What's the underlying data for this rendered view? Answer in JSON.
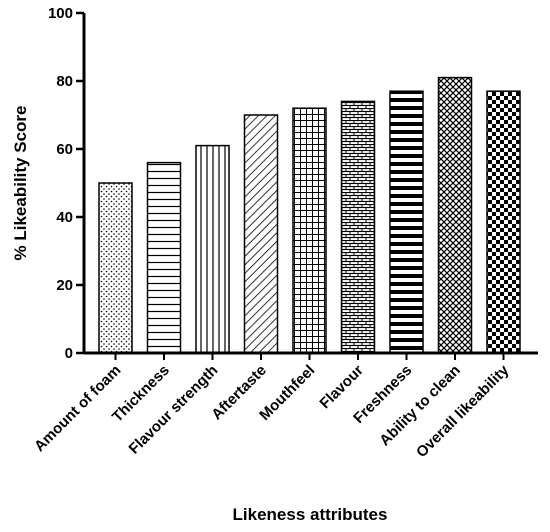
{
  "chart_data": {
    "type": "bar",
    "title": "",
    "xlabel": "Likeness attributes",
    "ylabel": "% Likeability Score",
    "ylim": [
      0,
      100
    ],
    "yticks": [
      0,
      20,
      40,
      60,
      80,
      100
    ],
    "grid": false,
    "legend": "none",
    "categories": [
      "Amount of foam",
      "Thickness",
      "Flavour strength",
      "Aftertaste",
      "Mouthfeel",
      "Flavour",
      "Freshness",
      "Ability to clean",
      "Overall likeability"
    ],
    "values": [
      50,
      56,
      61,
      70,
      72,
      74,
      77,
      81,
      77
    ],
    "patterns": [
      "dots",
      "horizontal-lines",
      "vertical-lines",
      "diagonal-lines",
      "grid",
      "brick",
      "thick-horizontal-stripes",
      "diagonal-cross",
      "checkerboard"
    ],
    "bar_color": "#000000",
    "background": "#ffffff"
  }
}
